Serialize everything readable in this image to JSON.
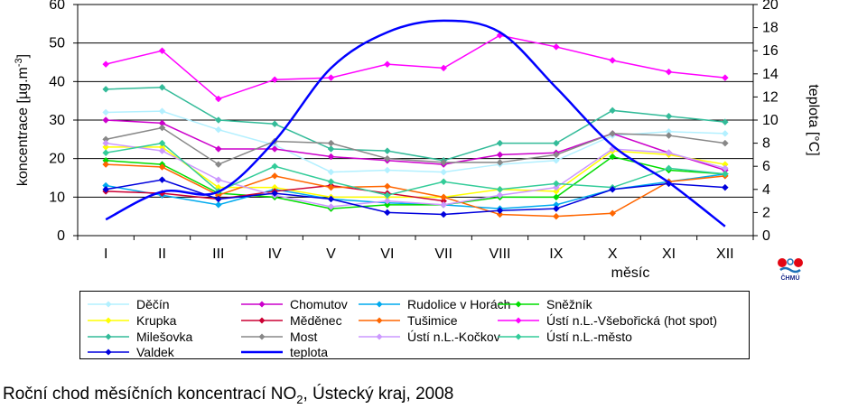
{
  "caption": {
    "prefix": "Roční chod měsíčních koncentrací NO",
    "subscript": "2",
    "suffix": ", Ústecký kraj, 2008"
  },
  "logo": {
    "text": "ČHMÚ",
    "colors": [
      "#e30613",
      "#1d71b8"
    ]
  },
  "chart_data": {
    "type": "line",
    "categories": [
      "I",
      "II",
      "III",
      "IV",
      "V",
      "VI",
      "VII",
      "VIII",
      "IX",
      "X",
      "XI",
      "XII"
    ],
    "xlabel": "měsíc",
    "ylabel": "koncentrace [µg.m-3]",
    "ylabel_parts": {
      "main": "koncentrace [µg.m",
      "sup": "-3",
      "end": "]"
    },
    "y2label": "teplota [°C]",
    "ylim": [
      0,
      60
    ],
    "y2lim": [
      0,
      20
    ],
    "yticks": [
      0,
      10,
      20,
      30,
      40,
      50,
      60
    ],
    "y2ticks": [
      0,
      2,
      4,
      6,
      8,
      10,
      12,
      14,
      16,
      18,
      20
    ],
    "grid": true,
    "legend_position": "bottom",
    "series": [
      {
        "name": "Děčín",
        "color": "#b3f0ff",
        "marker": "diamond",
        "axis": "left",
        "values": [
          32,
          32.3,
          27.5,
          23.5,
          16.5,
          17,
          16.5,
          18.5,
          19.5,
          26,
          27,
          26.5
        ]
      },
      {
        "name": "Chomutov",
        "color": "#cc00cc",
        "marker": "diamond",
        "axis": "left",
        "values": [
          30,
          29.2,
          22.5,
          22.5,
          20.5,
          19.5,
          18.5,
          21,
          21.5,
          26.5,
          21.5,
          17
        ]
      },
      {
        "name": "Rudolice v Horách",
        "color": "#00aaee",
        "marker": "diamond",
        "axis": "left",
        "values": [
          13,
          10.5,
          8,
          12,
          9.5,
          8.5,
          8,
          7,
          8,
          12,
          14,
          16
        ]
      },
      {
        "name": "Sněžník",
        "color": "#00dd00",
        "marker": "diamond",
        "axis": "left",
        "values": [
          19.5,
          18.5,
          11,
          10,
          7,
          8,
          8,
          10,
          10,
          20.5,
          17,
          16
        ]
      },
      {
        "name": "Krupka",
        "color": "#ffff00",
        "marker": "diamond",
        "axis": "left",
        "values": [
          23,
          23,
          12.5,
          12.5,
          10,
          10,
          10,
          12,
          11.5,
          22,
          21,
          18.5
        ]
      },
      {
        "name": "Měděnec",
        "color": "#cc0033",
        "marker": "diamond",
        "axis": "left",
        "values": [
          11.5,
          11,
          9.5,
          11.5,
          13,
          11,
          9,
          null,
          null,
          null,
          null,
          null
        ]
      },
      {
        "name": "Tušimice",
        "color": "#ff6600",
        "marker": "diamond",
        "axis": "left",
        "values": [
          18.5,
          17.8,
          10.5,
          15.5,
          12.5,
          12.8,
          10,
          5.5,
          5,
          5.8,
          14,
          15.5
        ]
      },
      {
        "name": "Ústí n.L.-Všebořická (hot spot)",
        "color": "#ff00ff",
        "marker": "diamond",
        "axis": "left",
        "values": [
          44.5,
          48,
          35.5,
          40.5,
          41,
          44.5,
          43.5,
          52,
          49,
          45.5,
          42.5,
          41
        ]
      },
      {
        "name": "Milešovka",
        "color": "#33bb99",
        "marker": "diamond",
        "axis": "left",
        "values": [
          38,
          38.5,
          30,
          29,
          22.5,
          22,
          19.5,
          24,
          24,
          32.5,
          31,
          29.5
        ]
      },
      {
        "name": "Most",
        "color": "#888888",
        "marker": "diamond",
        "axis": "left",
        "values": [
          25,
          28,
          18.5,
          24.5,
          24,
          20,
          19,
          19,
          21,
          26.5,
          26,
          24
        ]
      },
      {
        "name": "Ústí n.L.-Kočkov",
        "color": "#cc99ff",
        "marker": "diamond",
        "axis": "left",
        "values": [
          24,
          22,
          14.5,
          10.5,
          7.5,
          9,
          8,
          10.5,
          12.5,
          22.5,
          21.5,
          17.5
        ]
      },
      {
        "name": "Ústí n.L.-město",
        "color": "#33cc99",
        "marker": "diamond",
        "axis": "left",
        "values": [
          21.5,
          24,
          11.5,
          18,
          14,
          10.5,
          14,
          12,
          13.5,
          12.5,
          17.5,
          16
        ]
      },
      {
        "name": "Valdek",
        "color": "#0000dd",
        "marker": "diamond",
        "axis": "left",
        "values": [
          12,
          14.5,
          9.5,
          11,
          9.5,
          6,
          5.5,
          6.5,
          7,
          12,
          13.5,
          12.5
        ]
      },
      {
        "name": "teplota",
        "color": "#0000ff",
        "marker": "none",
        "axis": "right",
        "smooth": true,
        "width": 2.5,
        "values": [
          1.4,
          3.8,
          3.8,
          8.2,
          14.5,
          17.6,
          18.6,
          17.6,
          12.8,
          7.8,
          4.6,
          0.8
        ]
      }
    ]
  }
}
